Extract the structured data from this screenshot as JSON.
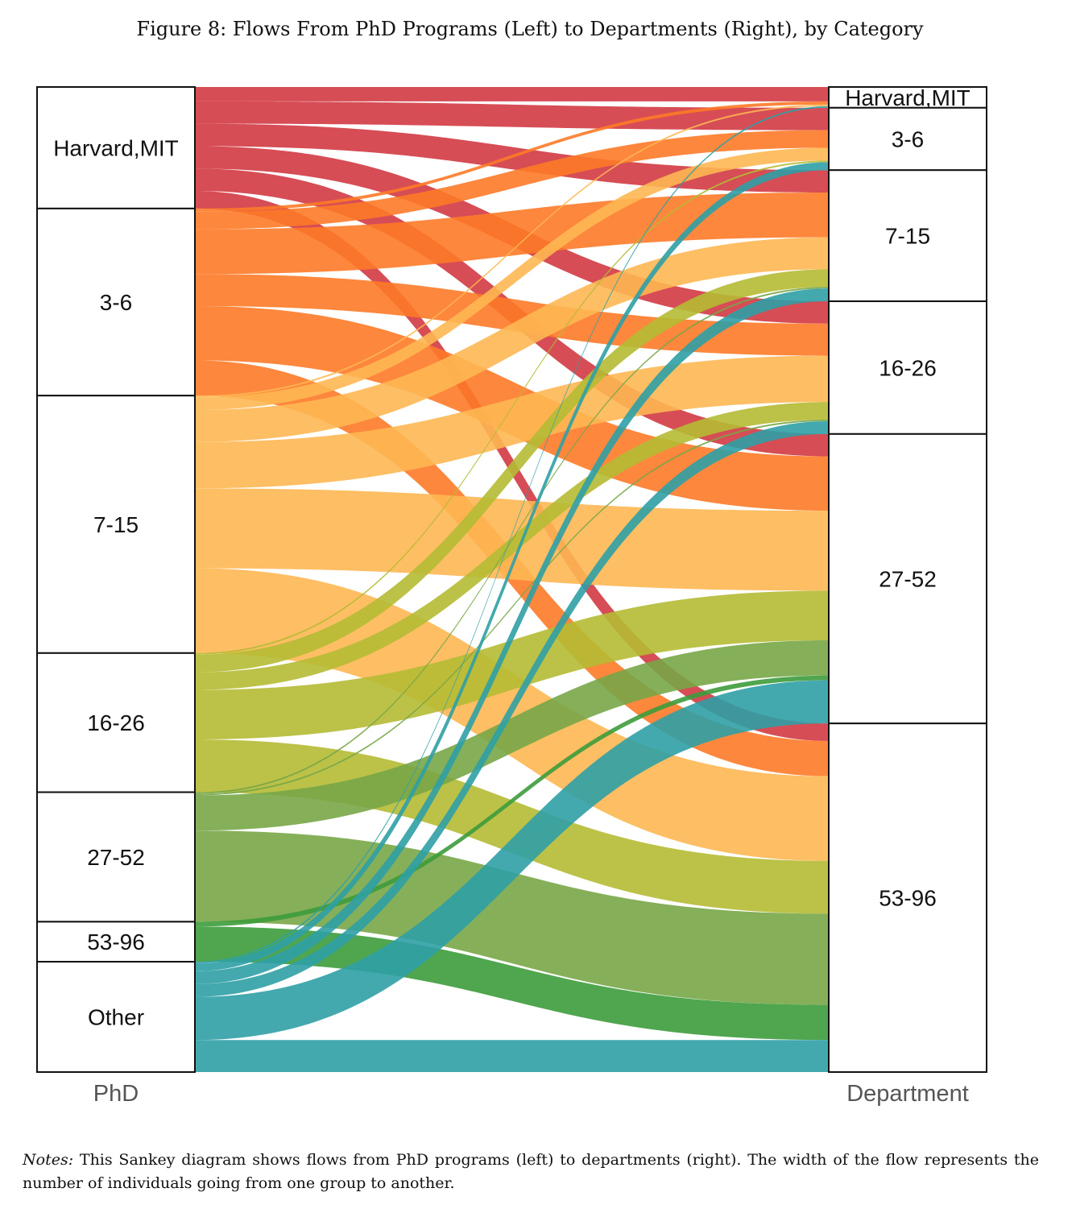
{
  "figure": {
    "caption": "Figure 8: Flows From PhD Programs (Left) to Departments (Right), by Category",
    "notes_lead": "Notes:",
    "notes_text": " This Sankey diagram shows flows from PhD programs (left) to departments (right).  The width of the flow represents the number of individuals going from one group to another."
  },
  "colors": {
    "Harvard,MIT": "#d23a44",
    "3-6": "#fd7a28",
    "7-15": "#feb752",
    "16-26": "#b5bb34",
    "27-52": "#78a647",
    "53-96": "#3d9c3b",
    "Other": "#2fa0a5"
  },
  "chart_data": {
    "type": "sankey",
    "left_axis_label": "PhD",
    "right_axis_label": "Department",
    "left_nodes": [
      "Harvard,MIT",
      "3-6",
      "7-15",
      "16-26",
      "27-52",
      "53-96",
      "Other"
    ],
    "right_nodes": [
      "Harvard,MIT",
      "3-6",
      "7-15",
      "16-26",
      "27-52",
      "53-96"
    ],
    "flows": [
      {
        "source": "Harvard,MIT",
        "target": "Harvard,MIT",
        "value": 9
      },
      {
        "source": "Harvard,MIT",
        "target": "3-6",
        "value": 14
      },
      {
        "source": "Harvard,MIT",
        "target": "7-15",
        "value": 14
      },
      {
        "source": "Harvard,MIT",
        "target": "16-26",
        "value": 14
      },
      {
        "source": "Harvard,MIT",
        "target": "27-52",
        "value": 14
      },
      {
        "source": "Harvard,MIT",
        "target": "53-96",
        "value": 11
      },
      {
        "source": "3-6",
        "target": "Harvard,MIT",
        "value": 2
      },
      {
        "source": "3-6",
        "target": "3-6",
        "value": 11
      },
      {
        "source": "3-6",
        "target": "7-15",
        "value": 28
      },
      {
        "source": "3-6",
        "target": "16-26",
        "value": 20
      },
      {
        "source": "3-6",
        "target": "27-52",
        "value": 34
      },
      {
        "source": "3-6",
        "target": "53-96",
        "value": 22
      },
      {
        "source": "7-15",
        "target": "Harvard,MIT",
        "value": 1
      },
      {
        "source": "7-15",
        "target": "3-6",
        "value": 8
      },
      {
        "source": "7-15",
        "target": "7-15",
        "value": 20
      },
      {
        "source": "7-15",
        "target": "16-26",
        "value": 29
      },
      {
        "source": "7-15",
        "target": "27-52",
        "value": 50
      },
      {
        "source": "7-15",
        "target": "53-96",
        "value": 53
      },
      {
        "source": "16-26",
        "target": "3-6",
        "value": 1
      },
      {
        "source": "16-26",
        "target": "7-15",
        "value": 11
      },
      {
        "source": "16-26",
        "target": "16-26",
        "value": 11
      },
      {
        "source": "16-26",
        "target": "27-52",
        "value": 31
      },
      {
        "source": "16-26",
        "target": "53-96",
        "value": 33
      },
      {
        "source": "27-52",
        "target": "7-15",
        "value": 1
      },
      {
        "source": "27-52",
        "target": "16-26",
        "value": 1
      },
      {
        "source": "27-52",
        "target": "27-52",
        "value": 22
      },
      {
        "source": "27-52",
        "target": "53-96",
        "value": 57
      },
      {
        "source": "53-96",
        "target": "27-52",
        "value": 3
      },
      {
        "source": "53-96",
        "target": "53-96",
        "value": 22
      },
      {
        "source": "Other",
        "target": "Harvard,MIT",
        "value": 1
      },
      {
        "source": "Other",
        "target": "3-6",
        "value": 5
      },
      {
        "source": "Other",
        "target": "7-15",
        "value": 8
      },
      {
        "source": "Other",
        "target": "16-26",
        "value": 8
      },
      {
        "source": "Other",
        "target": "27-52",
        "value": 27
      },
      {
        "source": "Other",
        "target": "53-96",
        "value": 20
      }
    ]
  }
}
